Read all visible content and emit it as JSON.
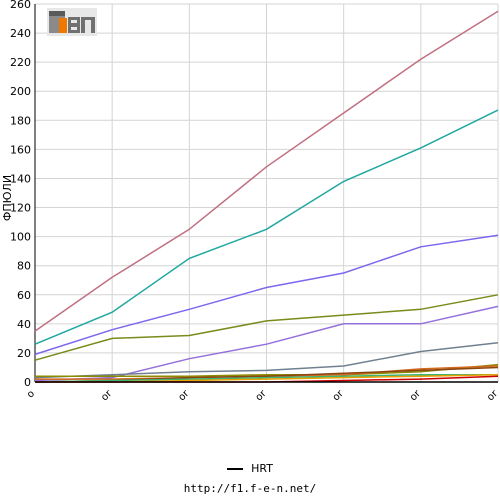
{
  "chart_data": {
    "type": "line",
    "title": "",
    "xlabel": "",
    "ylabel": "ФПЮЛИ",
    "ylim": [
      0,
      260
    ],
    "yticks": [
      0,
      20,
      40,
      60,
      80,
      100,
      120,
      140,
      160,
      180,
      200,
      220,
      240,
      260
    ],
    "categories": [
      "o",
      "or",
      "or",
      "or",
      "or",
      "or",
      "or"
    ],
    "grid": true,
    "series": [
      {
        "color": "#c07080",
        "values": [
          35,
          72,
          105,
          148,
          185,
          222,
          255
        ]
      },
      {
        "color": "#20a8a0",
        "values": [
          26,
          48,
          85,
          105,
          138,
          161,
          187
        ]
      },
      {
        "color": "#7b68ee",
        "values": [
          19,
          36,
          50,
          65,
          75,
          93,
          101
        ]
      },
      {
        "color": "#7b8a1a",
        "values": [
          15,
          30,
          32,
          42,
          46,
          50,
          60
        ]
      },
      {
        "color": "#9370db",
        "values": [
          1,
          3,
          16,
          26,
          40,
          40,
          52
        ]
      },
      {
        "color": "#708090",
        "values": [
          3,
          5,
          7,
          8,
          11,
          21,
          27
        ]
      },
      {
        "color": "#8b8b00",
        "values": [
          4,
          4,
          4,
          5,
          5,
          7,
          12
        ]
      },
      {
        "color": "#d2691e",
        "values": [
          2,
          2,
          3,
          4,
          5,
          9,
          11
        ]
      },
      {
        "color": "#8b4513",
        "values": [
          0,
          1,
          3,
          4,
          6,
          8,
          10
        ]
      },
      {
        "color": "#3cb371",
        "values": [
          0,
          1,
          2,
          3,
          4,
          5,
          5
        ]
      },
      {
        "color": "#e8a000",
        "values": [
          0,
          0,
          1,
          2,
          3,
          4,
          5
        ]
      },
      {
        "color": "#cc0000",
        "values": [
          0,
          0,
          0,
          0,
          1,
          2,
          4
        ]
      },
      {
        "color": "#000000",
        "name": "HRT",
        "values": [
          0,
          0,
          0,
          0,
          0,
          0,
          0
        ]
      }
    ]
  },
  "legend": {
    "label": "HRT"
  },
  "footer": {
    "url": "http://f1.f-e-n.net/"
  }
}
